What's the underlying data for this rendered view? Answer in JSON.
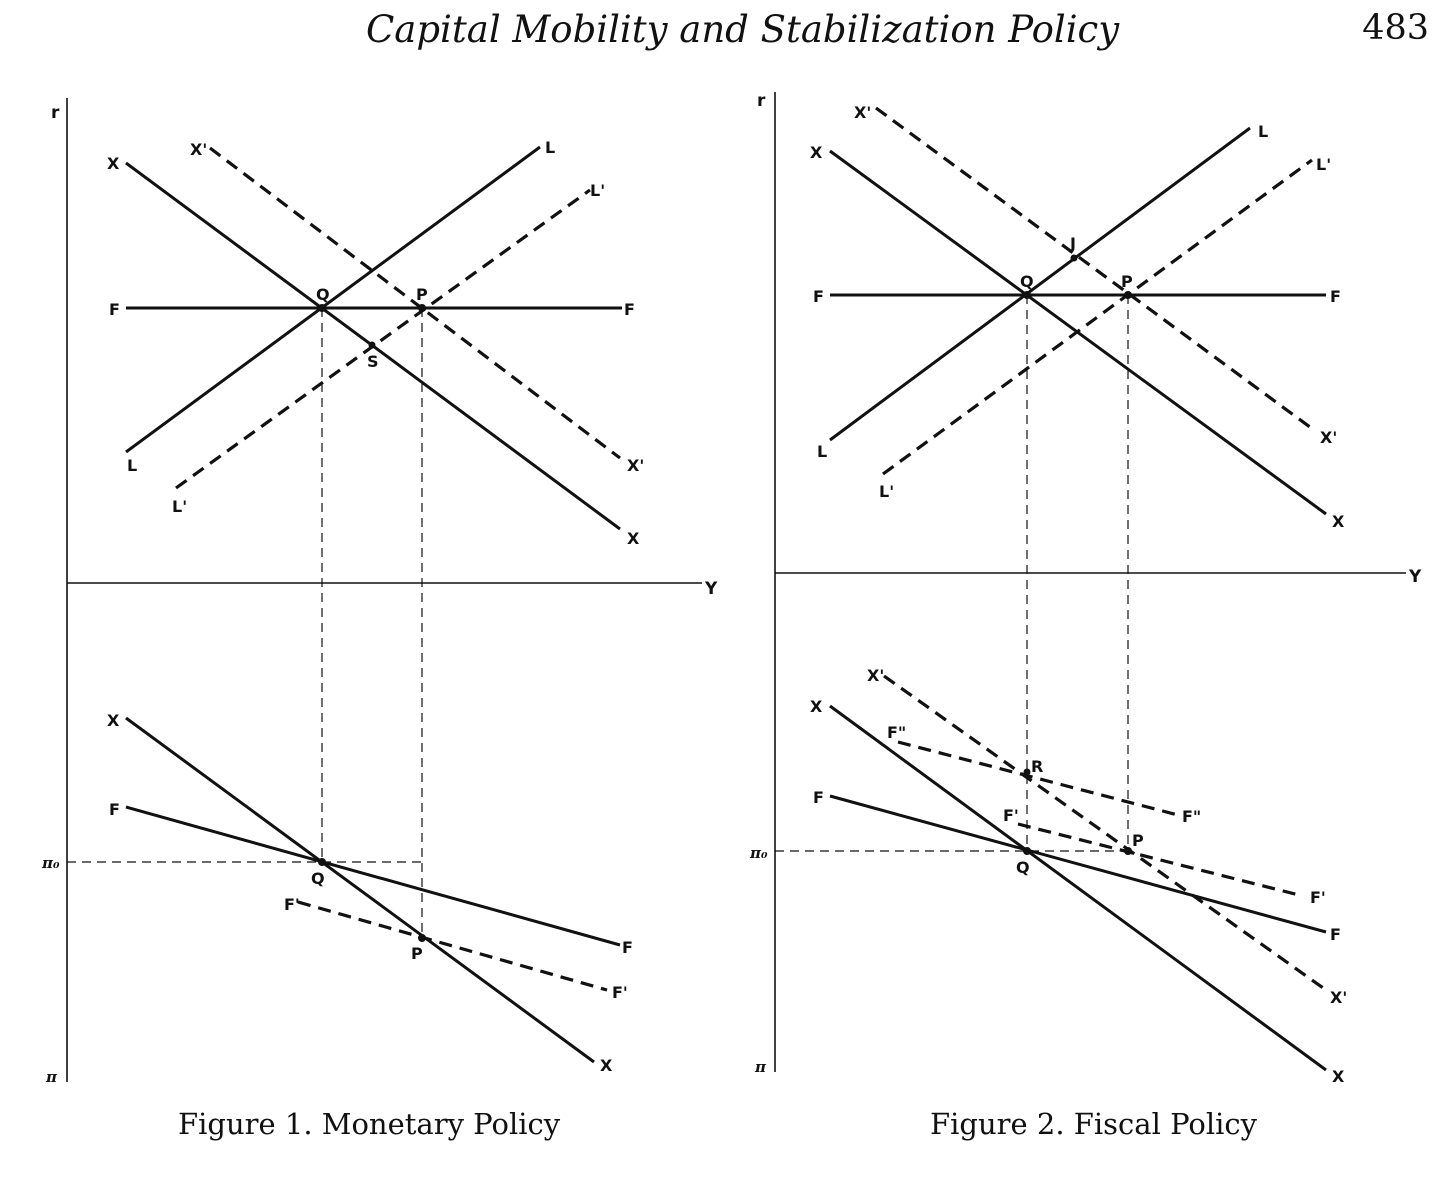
{
  "header": {
    "title": "Capital Mobility and Stabilization Policy",
    "page_number": "483"
  },
  "figure1": {
    "caption": "Figure 1. Monetary Policy",
    "labels": {
      "r": "r",
      "Y": "Y",
      "pi": "π",
      "pi0": "π₀",
      "X": "X",
      "Xp": "X'",
      "L": "L",
      "Lp": "L'",
      "F": "F",
      "Fp": "F'",
      "Q": "Q",
      "P": "P",
      "S": "S"
    }
  },
  "figure2": {
    "caption": "Figure 2. Fiscal Policy",
    "labels": {
      "r": "r",
      "Y": "Y",
      "pi": "π",
      "pi0": "π₀",
      "X": "X",
      "Xp": "X'",
      "L": "L",
      "Lp": "L'",
      "F": "F",
      "Fp": "F'",
      "Fpp": "F\"",
      "Q": "Q",
      "P": "P",
      "J": "J",
      "R": "R"
    }
  }
}
